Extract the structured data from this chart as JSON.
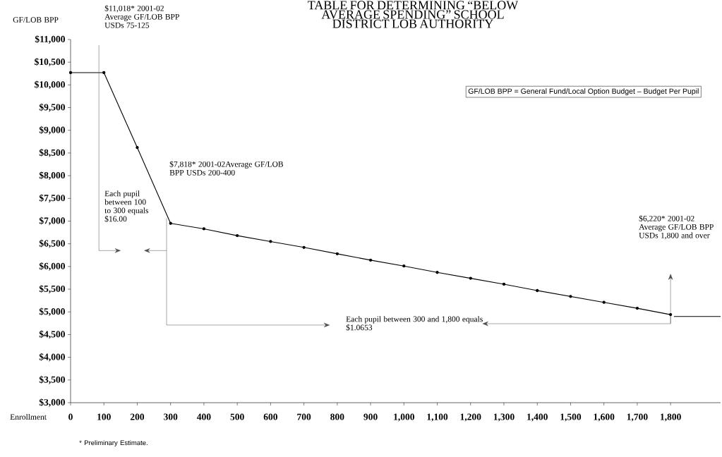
{
  "chart_data": {
    "type": "line",
    "title": "TABLE FOR DETERMINING “BELOW AVERAGE SPENDING” SCHOOL DISTRICT LOB AUTHORITY",
    "xlabel": "Enrollment",
    "ylabel": "GF/LOB BPP",
    "series": [
      {
        "color": "#000000",
        "x": [
          0,
          100,
          200,
          300,
          400,
          500,
          600,
          700,
          800,
          900,
          1000,
          1100,
          1200,
          1300,
          1400,
          1500,
          1600,
          1700,
          1800
        ],
        "values": [
          10270,
          10270,
          8620,
          6950,
          6830,
          6680,
          6550,
          6420,
          6280,
          6140,
          6010,
          5870,
          5740,
          5610,
          5470,
          5340,
          5210,
          5080,
          4940
        ]
      },
      {
        "color": "#000000",
        "marker": "none",
        "x": [
          1810,
          1950
        ],
        "values": [
          4900,
          4900
        ]
      }
    ],
    "marker": "circle",
    "line_style": "solid",
    "grid": false,
    "xlim": [
      0,
      1950
    ],
    "ylim": [
      3000,
      11000
    ],
    "xticks": [
      0,
      100,
      200,
      300,
      400,
      500,
      600,
      700,
      800,
      900,
      {
        "value": 1000,
        "label": "1,000"
      },
      {
        "value": 1100,
        "label": "1,100"
      },
      {
        "value": 1200,
        "label": "1,200"
      },
      {
        "value": 1300,
        "label": "1,300"
      },
      {
        "value": 1400,
        "label": "1,400"
      },
      {
        "value": 1500,
        "label": "1,500"
      },
      {
        "value": 1600,
        "label": "1,600"
      },
      {
        "value": 1700,
        "label": "1,700"
      },
      {
        "value": 1800,
        "label": "1,800"
      }
    ],
    "yticks": [
      {
        "value": 3000,
        "label": "$3,000"
      },
      {
        "value": 3500,
        "label": "$3,500"
      },
      {
        "value": 4000,
        "label": "$4,000"
      },
      {
        "value": 4500,
        "label": "$4,500"
      },
      {
        "value": 5000,
        "label": "$5,000"
      },
      {
        "value": 5500,
        "label": "$5,500"
      },
      {
        "value": 6000,
        "label": "$6,000"
      },
      {
        "value": 6500,
        "label": "$6,500"
      },
      {
        "value": 7000,
        "label": "$7,000"
      },
      {
        "value": 7500,
        "label": "$7,500"
      },
      {
        "value": 8000,
        "label": "$8,000"
      },
      {
        "value": 8500,
        "label": "$8,500"
      },
      {
        "value": 9000,
        "label": "$9,000"
      },
      {
        "value": 9500,
        "label": "$9,500"
      },
      {
        "value": 10000,
        "label": "$10,000"
      },
      {
        "value": 10500,
        "label": "$10,500"
      },
      {
        "value": 11000,
        "label": "$11,000"
      }
    ],
    "annotations": [
      "$11,018* 2001-02 Average GF/LOB BPP USDs 75-125",
      "$7,818* 2001-02Average GF/LOB BPP USDs 200-400",
      "Each pupil between 100 to 300 equals $16.00",
      "$6,220* 2001-02 Average GF/LOB BPP USDs 1,800 and over",
      "Each pupil between 300 and 1,800 equals $1.0653",
      "GF/LOB BPP = General Fund/Local Option Budget – Budget Per Pupil",
      "* Preliminary Estimate."
    ]
  }
}
